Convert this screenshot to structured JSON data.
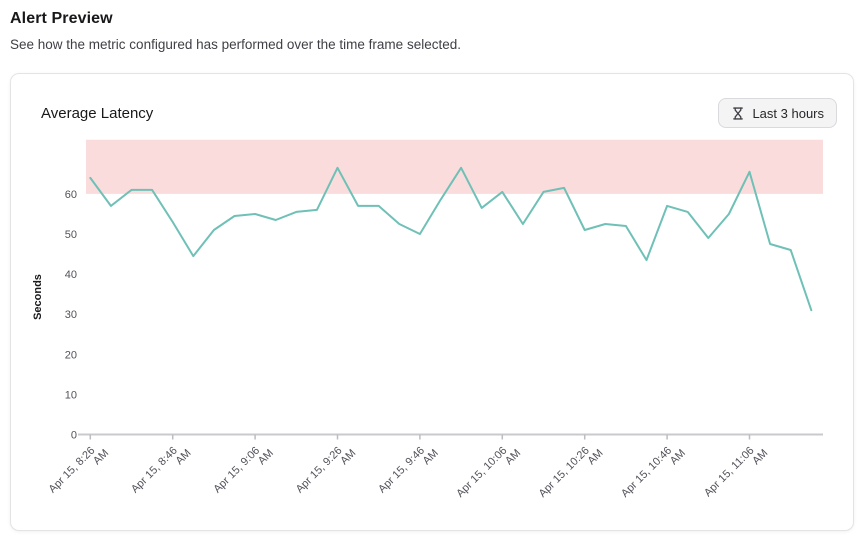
{
  "page": {
    "title": "Alert Preview",
    "subtitle": "See how the metric configured has performed over the time frame selected."
  },
  "card": {
    "title": "Average Latency",
    "time_range_button": {
      "icon": "hourglass-icon",
      "label": "Last 3 hours"
    }
  },
  "colors": {
    "line": "#6fc0b6",
    "alert_band": "#fbdcdc",
    "axis": "#c9c9ce",
    "tick_text": "#52525b"
  },
  "chart_data": {
    "type": "line",
    "title": "Average Latency",
    "ylabel": "Seconds",
    "ylim": [
      0,
      73.5
    ],
    "yticks": [
      0,
      10,
      20,
      30,
      40,
      50,
      60
    ],
    "grid": false,
    "legend": false,
    "alert_band": {
      "above": 60,
      "color": "#fbdcdc"
    },
    "line_color": "#6fc0b6",
    "tick_every": 4,
    "x_tick_labels": [
      "Apr 15, 8:26 AM",
      "Apr 15, 8:46 AM",
      "Apr 15, 9:06 AM",
      "Apr 15, 9:26 AM",
      "Apr 15, 9:46 AM",
      "Apr 15, 10:06 AM",
      "Apr 15, 10:26 AM",
      "Apr 15, 10:46 AM",
      "Apr 15, 11:06 AM"
    ],
    "x": [
      "8:26 AM",
      "8:31 AM",
      "8:36 AM",
      "8:41 AM",
      "8:46 AM",
      "8:51 AM",
      "8:56 AM",
      "9:01 AM",
      "9:06 AM",
      "9:11 AM",
      "9:16 AM",
      "9:21 AM",
      "9:26 AM",
      "9:31 AM",
      "9:36 AM",
      "9:41 AM",
      "9:46 AM",
      "9:51 AM",
      "9:56 AM",
      "10:01 AM",
      "10:06 AM",
      "10:11 AM",
      "10:16 AM",
      "10:21 AM",
      "10:26 AM",
      "10:31 AM",
      "10:36 AM",
      "10:41 AM",
      "10:46 AM",
      "10:51 AM",
      "10:56 AM",
      "11:01 AM",
      "11:06 AM",
      "11:11 AM",
      "11:16 AM",
      "11:21 AM"
    ],
    "values": [
      64,
      57,
      61,
      61,
      53,
      44.5,
      51,
      54.5,
      55,
      53.5,
      55.5,
      56,
      66.5,
      57,
      57,
      52.5,
      50,
      58.5,
      66.5,
      56.5,
      60.5,
      52.5,
      60.5,
      61.5,
      51,
      52.5,
      52,
      43.5,
      57,
      55.5,
      49,
      55,
      65.5,
      47.5,
      46,
      31
    ]
  }
}
